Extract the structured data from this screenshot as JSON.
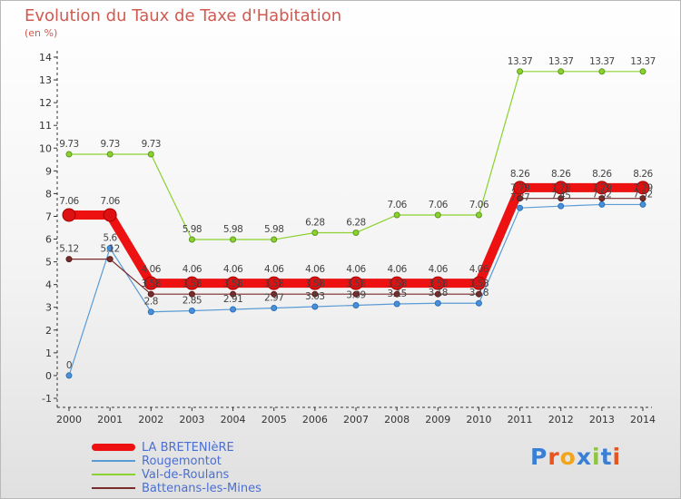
{
  "page": {
    "title": "Evolution du Taux de Taxe d'Habitation",
    "subtitle": "(en %)"
  },
  "brand": {
    "text": "Proxiti",
    "colors": [
      "#3a7fd6",
      "#e8541f",
      "#f2a51a",
      "#3a7fd6",
      "#8dc63f",
      "#3a7fd6",
      "#e8541f"
    ]
  },
  "chart_data": {
    "type": "line",
    "title": "Evolution du Taux de Taxe d'Habitation",
    "subtitle": "(en %)",
    "x": [
      2000,
      2001,
      2002,
      2003,
      2004,
      2005,
      2006,
      2007,
      2008,
      2009,
      2010,
      2011,
      2012,
      2013,
      2014
    ],
    "ylim": [
      -1,
      14
    ],
    "yticks": [
      -1,
      0,
      1,
      2,
      3,
      4,
      5,
      6,
      7,
      8,
      9,
      10,
      11,
      12,
      13,
      14
    ],
    "grid": false,
    "legend_position": "bottom-left",
    "series": [
      {
        "name": "LA BRETENIèRE",
        "color": "#ee1111",
        "values": [
          7.06,
          7.06,
          4.06,
          4.06,
          4.06,
          4.06,
          4.06,
          4.06,
          4.06,
          4.06,
          4.06,
          8.26,
          8.26,
          8.26,
          8.26
        ],
        "labels": [
          "7.06",
          "7.06",
          "4.06",
          "4.06",
          "4.06",
          "4.06",
          "4.06",
          "4.06",
          "4.06",
          "4.06",
          "4.06",
          "8.26",
          "8.26",
          "8.26",
          "8.26"
        ]
      },
      {
        "name": "Rougemontot",
        "color": "#5b9bd5",
        "values": [
          0,
          5.6,
          2.8,
          2.85,
          2.91,
          2.97,
          3.03,
          3.09,
          3.15,
          3.18,
          3.18,
          7.37,
          7.45,
          7.52,
          7.52
        ],
        "labels": [
          "0",
          "5.6",
          "2.8",
          "2.85",
          "2.91",
          "2.97",
          "3.03",
          "3.09",
          "3.15",
          "3.18",
          "3.18",
          "7.37",
          "7.45",
          "7.52",
          "7.52"
        ]
      },
      {
        "name": "Val-de-Roulans",
        "color": "#8bd12f",
        "values": [
          9.73,
          9.73,
          9.73,
          5.98,
          5.98,
          5.98,
          6.28,
          6.28,
          7.06,
          7.06,
          7.06,
          13.37,
          13.37,
          13.37,
          13.37
        ],
        "labels": [
          "9.73",
          "9.73",
          "9.73",
          "5.98",
          "5.98",
          "5.98",
          "6.28",
          "6.28",
          "7.06",
          "7.06",
          "7.06",
          "13.37",
          "13.37",
          "13.37",
          "13.37"
        ]
      },
      {
        "name": "Battenans-les-Mines",
        "color": "#7a2b2b",
        "values": [
          5.12,
          5.12,
          3.58,
          3.58,
          3.58,
          3.58,
          3.58,
          3.58,
          3.58,
          3.58,
          3.58,
          7.79,
          7.79,
          7.79,
          7.79
        ],
        "labels": [
          "5.12",
          "5.12",
          "3.58",
          "3.58",
          "3.58",
          "3.58",
          "3.58",
          "3.58",
          "3.58",
          "3.58",
          "3.58",
          "7.79",
          "7.79",
          "7.79",
          "7.79"
        ]
      }
    ]
  }
}
